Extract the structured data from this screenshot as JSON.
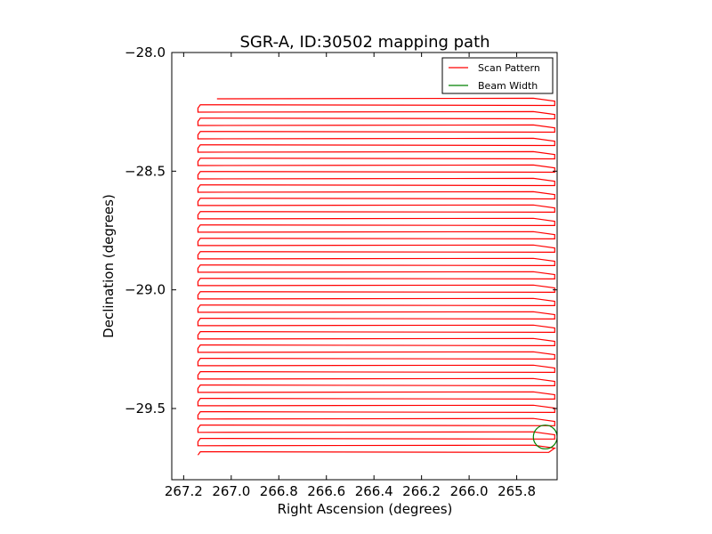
{
  "chart_data": {
    "type": "line",
    "title": "SGR-A, ID:30502 mapping path",
    "xlabel": "Right Ascension (degrees)",
    "ylabel": "Declination (degrees)",
    "xlim": [
      267.25,
      265.63
    ],
    "ylim": [
      -29.8,
      -28.0
    ],
    "x_ticks": [
      267.2,
      267.0,
      266.8,
      266.6,
      266.4,
      266.2,
      266.0,
      265.8
    ],
    "x_tick_labels": [
      "267.2",
      "267.0",
      "266.8",
      "266.6",
      "266.4",
      "266.2",
      "266.0",
      "265.8"
    ],
    "y_ticks": [
      -28.0,
      -28.5,
      -29.0,
      -29.5
    ],
    "y_tick_labels": [
      "−28.0",
      "−28.5",
      "−29.0",
      "−29.5"
    ],
    "grid": false,
    "legend_position": "top-right",
    "series": [
      {
        "name": "Scan Pattern",
        "color": "#ff0000",
        "style": "raster scan",
        "ra_left": 267.14,
        "ra_right": 265.64,
        "ra_start": 267.06,
        "ra_end": 265.665,
        "dec_start": -28.195,
        "dec_end": -29.685,
        "num_passes": 54
      },
      {
        "name": "Beam Width",
        "color": "#008000",
        "style": "circle",
        "center": [
          265.68,
          -29.62
        ],
        "radius_deg": 0.05
      }
    ]
  }
}
